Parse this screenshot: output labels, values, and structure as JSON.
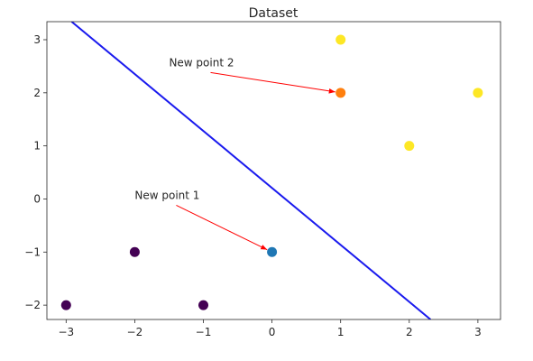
{
  "chart_data": {
    "type": "scatter",
    "title": "Dataset",
    "xlim": [
      -3.28,
      3.33
    ],
    "ylim": [
      -2.27,
      3.34
    ],
    "xticks": [
      {
        "value": -3,
        "label": "−3"
      },
      {
        "value": -2,
        "label": "−2"
      },
      {
        "value": -1,
        "label": "−1"
      },
      0,
      1,
      2,
      3
    ],
    "yticks": [
      {
        "value": -2,
        "label": "−2"
      },
      {
        "value": -1,
        "label": "−1"
      },
      0,
      1,
      2,
      3
    ],
    "grid": false,
    "series": [
      {
        "color": "#440154",
        "mode": "markers",
        "x": [
          -3,
          -2,
          -1
        ],
        "values": [
          -2,
          -1,
          -2
        ]
      },
      {
        "color": "#fde725",
        "mode": "markers",
        "x": [
          1,
          2,
          3
        ],
        "values": [
          3,
          1,
          2
        ]
      },
      {
        "color": "#1f77b4",
        "mode": "markers",
        "x": [
          0
        ],
        "values": [
          -1
        ]
      },
      {
        "color": "#ff7f0e",
        "mode": "markers",
        "x": [
          1
        ],
        "values": [
          2
        ]
      },
      {
        "color": "#1a1aee",
        "mode": "line",
        "x": [
          -2.92,
          2.31
        ],
        "values": [
          3.34,
          -2.27
        ]
      }
    ],
    "annotations": [
      {
        "text": "New point 1",
        "x": 0,
        "y": -1,
        "text_x": -2,
        "text_y": 0,
        "color": "#0000ff",
        "arrow_color": "#ff0000"
      },
      {
        "text": "New point 2",
        "x": 1,
        "y": 2,
        "text_x": -1.5,
        "text_y": 2.5,
        "color": "#ff0000",
        "arrow_color": "#ff0000"
      }
    ]
  }
}
